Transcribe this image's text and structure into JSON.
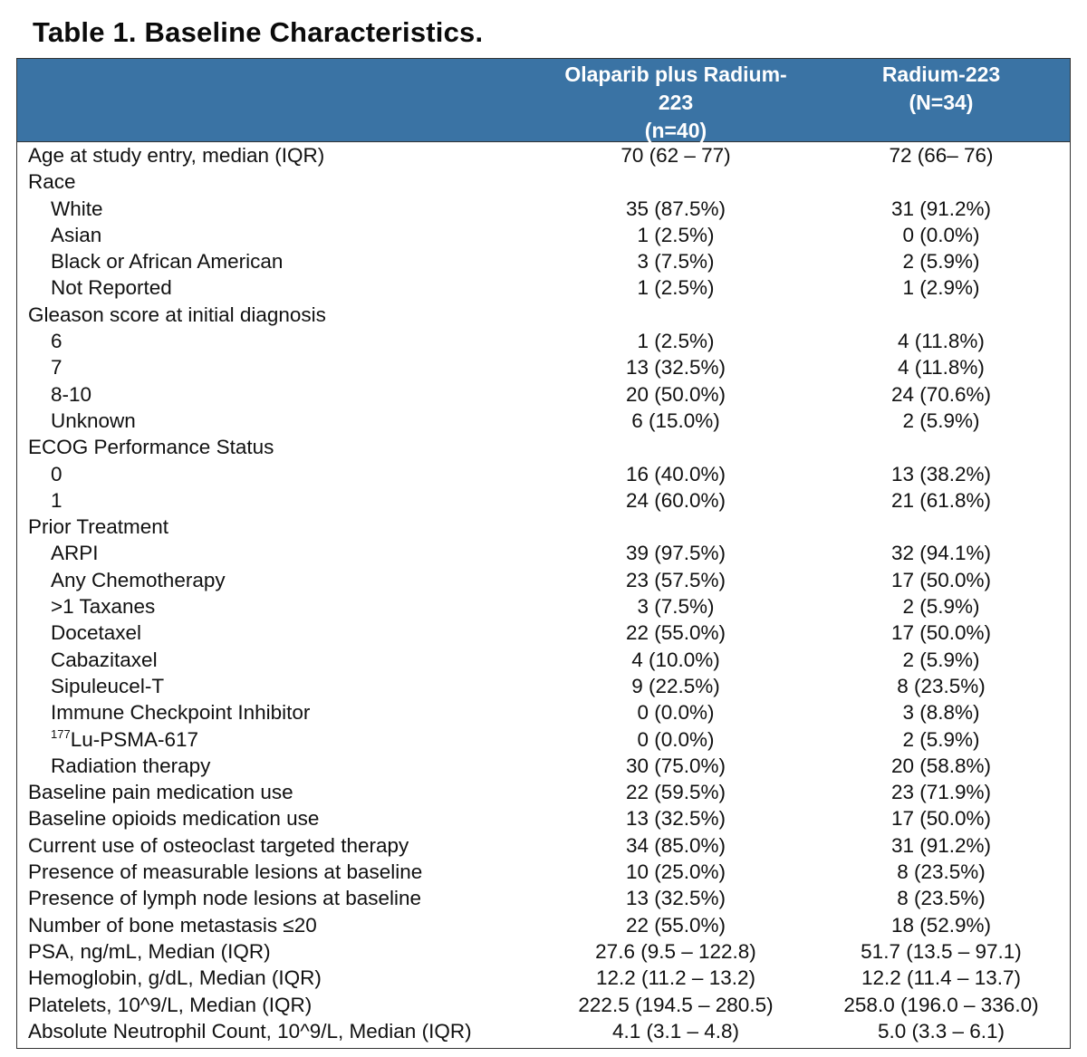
{
  "title": "Table 1. Baseline Characteristics.",
  "header": {
    "col1_lines": [
      "Olaparib plus Radium-",
      "223",
      "(n=40)"
    ],
    "col2_lines": [
      "Radium-223",
      "(N=34)"
    ]
  },
  "rows": [
    {
      "label": "Age at study entry, median (IQR)",
      "indent": false,
      "v1": "70 (62 – 77)",
      "v2": "72 (66– 76)"
    },
    {
      "label": "Race",
      "indent": false,
      "v1": "",
      "v2": ""
    },
    {
      "label": "White",
      "indent": true,
      "v1": "35 (87.5%)",
      "v2": "31 (91.2%)"
    },
    {
      "label": "Asian",
      "indent": true,
      "v1": "1 (2.5%)",
      "v2": "0 (0.0%)"
    },
    {
      "label": "Black or African American",
      "indent": true,
      "v1": "3 (7.5%)",
      "v2": "2 (5.9%)"
    },
    {
      "label": "Not Reported",
      "indent": true,
      "v1": "1 (2.5%)",
      "v2": "1 (2.9%)"
    },
    {
      "label": "Gleason score at initial diagnosis",
      "indent": false,
      "v1": "",
      "v2": ""
    },
    {
      "label": "6",
      "indent": true,
      "v1": "1 (2.5%)",
      "v2": "4 (11.8%)"
    },
    {
      "label": "7",
      "indent": true,
      "v1": "13 (32.5%)",
      "v2": "4 (11.8%)"
    },
    {
      "label": "8-10",
      "indent": true,
      "v1": "20 (50.0%)",
      "v2": "24 (70.6%)"
    },
    {
      "label": "Unknown",
      "indent": true,
      "v1": "6 (15.0%)",
      "v2": "2 (5.9%)"
    },
    {
      "label": "ECOG Performance Status",
      "indent": false,
      "v1": "",
      "v2": ""
    },
    {
      "label": "0",
      "indent": true,
      "v1": "16 (40.0%)",
      "v2": "13 (38.2%)"
    },
    {
      "label": "1",
      "indent": true,
      "v1": "24 (60.0%)",
      "v2": "21 (61.8%)"
    },
    {
      "label": "Prior Treatment",
      "indent": false,
      "v1": "",
      "v2": ""
    },
    {
      "label": "ARPI",
      "indent": true,
      "v1": "39 (97.5%)",
      "v2": "32 (94.1%)"
    },
    {
      "label": "Any Chemotherapy",
      "indent": true,
      "v1": "23 (57.5%)",
      "v2": "17 (50.0%)"
    },
    {
      "label": ">1 Taxanes",
      "indent": true,
      "v1": "3 (7.5%)",
      "v2": "2 (5.9%)"
    },
    {
      "label": "Docetaxel",
      "indent": true,
      "v1": "22 (55.0%)",
      "v2": "17 (50.0%)"
    },
    {
      "label": "Cabazitaxel",
      "indent": true,
      "v1": "4 (10.0%)",
      "v2": "2 (5.9%)"
    },
    {
      "label": "Sipuleucel-T",
      "indent": true,
      "v1": "9 (22.5%)",
      "v2": "8 (23.5%)"
    },
    {
      "label": "Immune Checkpoint Inhibitor",
      "indent": true,
      "v1": "0 (0.0%)",
      "v2": "3 (8.8%)"
    },
    {
      "label": "Lu-PSMA-617",
      "label_sup": "177",
      "indent": true,
      "v1": "0 (0.0%)",
      "v2": "2 (5.9%)"
    },
    {
      "label": "Radiation therapy",
      "indent": true,
      "v1": "30 (75.0%)",
      "v2": "20 (58.8%)"
    },
    {
      "label": "Baseline pain medication use",
      "indent": false,
      "v1": "22 (59.5%)",
      "v2": "23 (71.9%)"
    },
    {
      "label": "Baseline opioids medication use",
      "indent": false,
      "v1": "13 (32.5%)",
      "v2": "17 (50.0%)"
    },
    {
      "label": "Current use of osteoclast targeted therapy",
      "indent": false,
      "v1": "34 (85.0%)",
      "v2": "31 (91.2%)"
    },
    {
      "label": "Presence of measurable lesions at baseline",
      "indent": false,
      "v1": "10 (25.0%)",
      "v2": "8 (23.5%)"
    },
    {
      "label": "Presence of lymph node lesions at baseline",
      "indent": false,
      "v1": "13 (32.5%)",
      "v2": "8 (23.5%)"
    },
    {
      "label": "Number of bone metastasis ≤20",
      "indent": false,
      "v1": "22 (55.0%)",
      "v2": "18 (52.9%)"
    },
    {
      "label": "PSA, ng/mL, Median (IQR)",
      "indent": false,
      "v1": "27.6 (9.5 – 122.8)",
      "v2": "51.7 (13.5 – 97.1)"
    },
    {
      "label": "Hemoglobin, g/dL, Median (IQR)",
      "indent": false,
      "v1": "12.2 (11.2 – 13.2)",
      "v2": "12.2 (11.4 – 13.7)"
    },
    {
      "label": "Platelets, 10^9/L, Median (IQR)",
      "indent": false,
      "v1": "222.5 (194.5 – 280.5)",
      "v2": "258.0 (196.0 – 336.0)"
    },
    {
      "label": "Absolute Neutrophil Count, 10^9/L, Median (IQR)",
      "indent": false,
      "v1": "4.1 (3.1 – 4.8)",
      "v2": "5.0 (3.3 – 6.1)"
    }
  ]
}
